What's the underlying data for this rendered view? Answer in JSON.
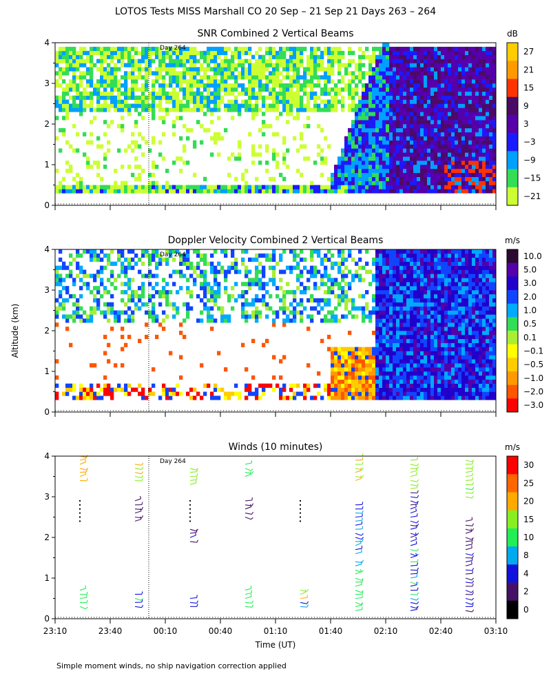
{
  "figure": {
    "title": "LOTOS Tests MISS Marshall CO  20 Sep – 21 Sep 21 Days 263 – 264",
    "ylabel": "Altitude (km)",
    "xlabel": "Time (UT)",
    "footnote": "Simple moment winds, no ship navigation correction applied",
    "day_marker": "Day 264"
  },
  "chart_data": [
    {
      "id": "snr",
      "type": "heatmap",
      "title": "SNR Combined 2 Vertical Beams",
      "ylim": [
        0,
        4
      ],
      "yticks": [
        "0",
        "1",
        "2",
        "3",
        "4"
      ],
      "unit": "dB",
      "colorbar_labels": [
        "27",
        "21",
        "15",
        "9",
        "3",
        "−3",
        "−9",
        "−15",
        "−21"
      ],
      "colorbar_colors": [
        "#ffcc00",
        "#ff9900",
        "#ff3300",
        "#4a0a66",
        "#5500aa",
        "#1a1aff",
        "#00a0ff",
        "#33dd55",
        "#ccff33"
      ]
    },
    {
      "id": "doppler",
      "type": "heatmap",
      "title": "Doppler Velocity Combined 2 Vertical Beams",
      "ylim": [
        0,
        4
      ],
      "yticks": [
        "0",
        "1",
        "2",
        "3",
        "4"
      ],
      "unit": "m/s",
      "colorbar_labels": [
        "10.0",
        "5.0",
        "3.0",
        "2.0",
        "1.0",
        "0.5",
        "0.1",
        "−0.1",
        "−0.5",
        "−1.0",
        "−2.0",
        "−3.0"
      ],
      "colorbar_colors": [
        "#2a0a33",
        "#5500aa",
        "#2200cc",
        "#1144ff",
        "#00aaff",
        "#33dd55",
        "#aaee33",
        "#ffff00",
        "#ffcc00",
        "#ff9900",
        "#ff5500",
        "#ff0000"
      ]
    },
    {
      "id": "winds",
      "type": "scatter",
      "title": "Winds (10 minutes)",
      "ylim": [
        0,
        4
      ],
      "yticks": [
        "0",
        "1",
        "2",
        "3",
        "4"
      ],
      "unit": "m/s",
      "xticks": [
        "23:10",
        "23:40",
        "00:10",
        "00:40",
        "01:10",
        "01:40",
        "02:10",
        "02:40",
        "03:10"
      ],
      "colorbar_labels": [
        "30",
        "25",
        "20",
        "15",
        "10",
        "8",
        "4",
        "2",
        "0"
      ],
      "colorbar_colors": [
        "#ff0000",
        "#ff6600",
        "#ffaa00",
        "#88ee22",
        "#22ee55",
        "#00aaee",
        "#1111dd",
        "#441166",
        "#000000"
      ]
    }
  ]
}
